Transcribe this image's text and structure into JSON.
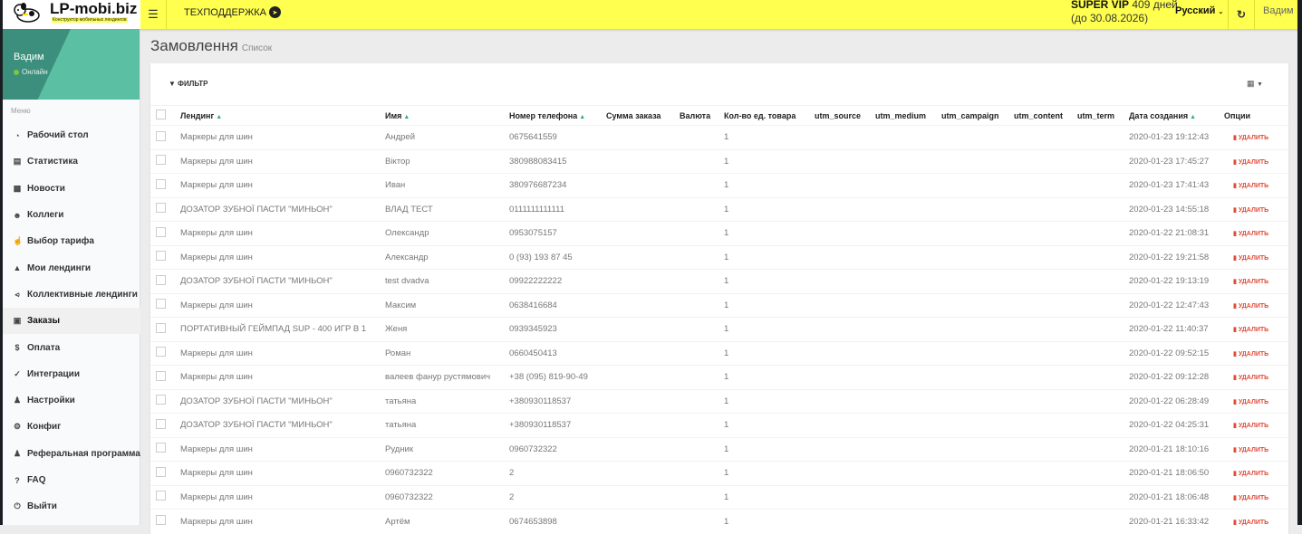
{
  "header": {
    "logo_name": "LP-mobi.biz",
    "logo_tagline": "Конструктор мобильных лендингов",
    "support_label": "ТЕХПОДДЕРЖКА",
    "plan": "SUPER VIP",
    "days_left": "409 дней",
    "valid_until": "(до 30.08.2026)",
    "language": "Русский",
    "user": "Вадим"
  },
  "sidebar": {
    "user_name": "Вадим",
    "status": "Онлайн",
    "menu_label": "Меню",
    "items": [
      {
        "label": "Рабочий стол",
        "icon": "dashboard-icon"
      },
      {
        "label": "Статистика",
        "icon": "bar-chart-icon"
      },
      {
        "label": "Новости",
        "icon": "newspaper-icon"
      },
      {
        "label": "Коллеги",
        "icon": "users-icon"
      },
      {
        "label": "Выбор тарифа",
        "icon": "hand-pointer-icon"
      },
      {
        "label": "Мои лендинги",
        "icon": "landings-icon"
      },
      {
        "label": "Коллективные лендинги",
        "icon": "share-icon"
      },
      {
        "label": "Заказы",
        "icon": "cart-icon",
        "active": true
      },
      {
        "label": "Оплата",
        "icon": "dollar-icon"
      },
      {
        "label": "Интеграции",
        "icon": "plug-icon"
      },
      {
        "label": "Настройки",
        "icon": "user-icon"
      },
      {
        "label": "Конфиг",
        "icon": "cogs-icon"
      },
      {
        "label": "Реферальная программа",
        "icon": "user-plus-icon"
      },
      {
        "label": "FAQ",
        "icon": "question-icon"
      },
      {
        "label": "Выйти",
        "icon": "power-icon"
      }
    ]
  },
  "page": {
    "title": "Замовлення",
    "subtitle": "Список",
    "filter_label": "ФИЛЬТР"
  },
  "table": {
    "columns": [
      "Лендинг",
      "Имя",
      "Номер телефона",
      "Сумма заказа",
      "Валюта",
      "Кол-во ед. товара",
      "utm_source",
      "utm_medium",
      "utm_campaign",
      "utm_content",
      "utm_term",
      "Дата создания",
      "Опции"
    ],
    "delete_label": "УДАЛИТЬ",
    "rows": [
      {
        "landing": "Маркеры для шин",
        "name": "Андрей",
        "phone": "0675641559",
        "qty": "1",
        "date": "2020-01-23 19:12:43"
      },
      {
        "landing": "Маркеры для шин",
        "name": "Віктор",
        "phone": "380988083415",
        "qty": "1",
        "date": "2020-01-23 17:45:27"
      },
      {
        "landing": "Маркеры для шин",
        "name": "Иван",
        "phone": "380976687234",
        "qty": "1",
        "date": "2020-01-23 17:41:43"
      },
      {
        "landing": "ДОЗАТОР ЗУБНОЇ ПАСТИ \"МИНЬОН\"",
        "name": "ВЛАД ТЕСТ",
        "phone": "0111111111111",
        "qty": "1",
        "date": "2020-01-23 14:55:18"
      },
      {
        "landing": "Маркеры для шин",
        "name": "Олександр",
        "phone": "0953075157",
        "qty": "1",
        "date": "2020-01-22 21:08:31"
      },
      {
        "landing": "Маркеры для шин",
        "name": "Александр",
        "phone": "0 (93) 193 87 45",
        "qty": "1",
        "date": "2020-01-22 19:21:58"
      },
      {
        "landing": "ДОЗАТОР ЗУБНОЇ ПАСТИ \"МИНЬОН\"",
        "name": "test dvadva",
        "phone": "09922222222",
        "qty": "1",
        "date": "2020-01-22 19:13:19"
      },
      {
        "landing": "Маркеры для шин",
        "name": "Максим",
        "phone": "0638416684",
        "qty": "1",
        "date": "2020-01-22 12:47:43"
      },
      {
        "landing": "ПОРТАТИВНЫЙ ГЕЙМПАД SUP - 400 ИГР В 1",
        "name": "Женя",
        "phone": "0939345923",
        "qty": "1",
        "date": "2020-01-22 11:40:37"
      },
      {
        "landing": "Маркеры для шин",
        "name": "Роман",
        "phone": "0660450413",
        "qty": "1",
        "date": "2020-01-22 09:52:15"
      },
      {
        "landing": "Маркеры для шин",
        "name": "валеев фанур рустямович",
        "phone": "+38 (095) 819-90-49",
        "qty": "1",
        "date": "2020-01-22 09:12:28"
      },
      {
        "landing": "ДОЗАТОР ЗУБНОЇ ПАСТИ \"МИНЬОН\"",
        "name": "татьяна",
        "phone": "+380930118537",
        "qty": "1",
        "date": "2020-01-22 06:28:49"
      },
      {
        "landing": "ДОЗАТОР ЗУБНОЇ ПАСТИ \"МИНЬОН\"",
        "name": "татьяна",
        "phone": "+380930118537",
        "qty": "1",
        "date": "2020-01-22 04:25:31"
      },
      {
        "landing": "Маркеры для шин",
        "name": "Рудник",
        "phone": "0960732322",
        "qty": "1",
        "date": "2020-01-21 18:10:16"
      },
      {
        "landing": "Маркеры для шин",
        "name": "0960732322",
        "phone": "2",
        "qty": "1",
        "date": "2020-01-21 18:06:50"
      },
      {
        "landing": "Маркеры для шин",
        "name": "0960732322",
        "phone": "2",
        "qty": "1",
        "date": "2020-01-21 18:06:48"
      },
      {
        "landing": "Маркеры для шин",
        "name": "Артём",
        "phone": "0674653898",
        "qty": "1",
        "date": "2020-01-21 16:33:42"
      }
    ]
  },
  "colors": {
    "topbar": "#ffff4f",
    "sidebar_panel": "#5bc0a3",
    "delete": "#e04b3a",
    "sort_icon": "#3aa88a"
  }
}
